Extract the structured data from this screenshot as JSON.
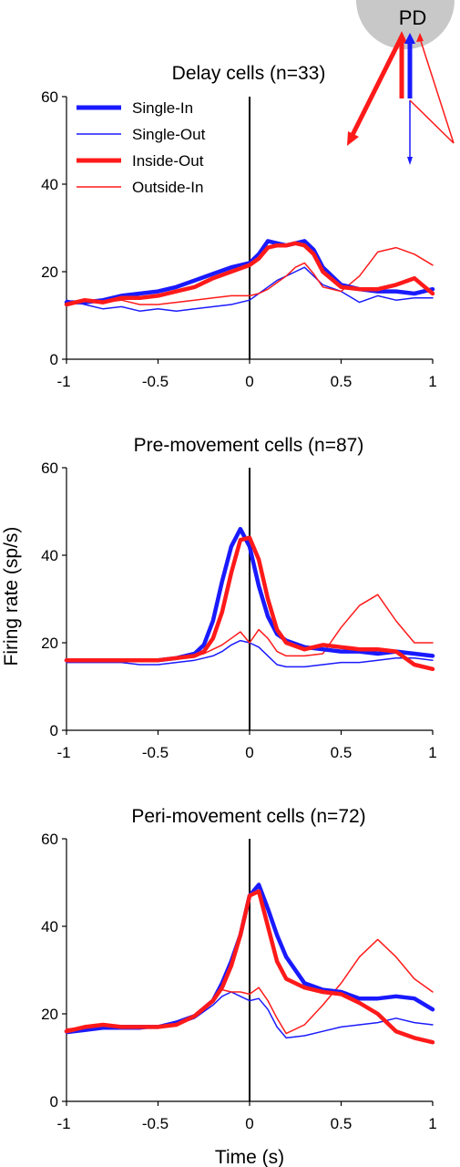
{
  "figure": {
    "ylabel": "Firing rate (sp/s)",
    "xlabel": "Time (s)",
    "inset_label": "PD",
    "colors": {
      "blue": "#1a1aff",
      "red": "#ff1a1a",
      "gray": "#c8c8c8"
    }
  },
  "legend": [
    {
      "name": "Single-In",
      "color": "#1a1aff",
      "weight": "thick"
    },
    {
      "name": "Single-Out",
      "color": "#1a1aff",
      "weight": "thin"
    },
    {
      "name": "Inside-Out",
      "color": "#ff1a1a",
      "weight": "thick"
    },
    {
      "name": "Outside-In",
      "color": "#ff1a1a",
      "weight": "thin"
    }
  ],
  "chart_data": [
    {
      "type": "line",
      "title": "Delay cells (n=33)",
      "xlim": [
        -1,
        1
      ],
      "ylim": [
        0,
        60
      ],
      "xticks": [
        "-1",
        "-0.5",
        "0",
        "0.5",
        "1"
      ],
      "yticks": [
        "0",
        "20",
        "40",
        "60"
      ],
      "x": [
        -1,
        -0.9,
        -0.8,
        -0.7,
        -0.6,
        -0.5,
        -0.4,
        -0.3,
        -0.2,
        -0.1,
        0,
        0.05,
        0.1,
        0.15,
        0.2,
        0.25,
        0.3,
        0.35,
        0.4,
        0.5,
        0.6,
        0.7,
        0.8,
        0.9,
        1
      ],
      "series": [
        {
          "name": "Single-In",
          "values": [
            13,
            13,
            13.5,
            14.5,
            15,
            15.5,
            16.5,
            18,
            19.5,
            21,
            22,
            24,
            27,
            26.5,
            26,
            26.5,
            27,
            25,
            21,
            17,
            16,
            15.5,
            15.5,
            15,
            16
          ]
        },
        {
          "name": "Single-Out",
          "values": [
            13.5,
            12.5,
            11.5,
            12,
            11,
            11.5,
            11,
            11.5,
            12,
            12.5,
            13.5,
            15,
            16.5,
            18,
            19,
            20,
            21,
            19,
            17,
            15.5,
            13,
            14.5,
            13.5,
            14,
            14
          ]
        },
        {
          "name": "Inside-Out",
          "values": [
            12.5,
            13.5,
            13,
            14,
            14,
            14.5,
            15.5,
            16.5,
            18.5,
            20,
            21.5,
            23,
            25.5,
            26,
            26,
            26.5,
            26,
            24,
            20,
            16.5,
            16,
            16,
            17,
            18.5,
            15
          ]
        },
        {
          "name": "Outside-In",
          "values": [
            12.5,
            13,
            13,
            13.5,
            12.5,
            12.5,
            13,
            13.5,
            14,
            14.5,
            14.5,
            15,
            16,
            17.5,
            19,
            21,
            22,
            19.5,
            16.5,
            15.5,
            19,
            24.5,
            25.5,
            24,
            21.5
          ]
        }
      ]
    },
    {
      "type": "line",
      "title": "Pre-movement cells (n=87)",
      "xlim": [
        -1,
        1
      ],
      "ylim": [
        0,
        60
      ],
      "xticks": [
        "-1",
        "-0.5",
        "0",
        "0.5",
        "1"
      ],
      "yticks": [
        "0",
        "20",
        "40",
        "60"
      ],
      "x": [
        -1,
        -0.9,
        -0.8,
        -0.7,
        -0.6,
        -0.5,
        -0.4,
        -0.3,
        -0.25,
        -0.2,
        -0.15,
        -0.1,
        -0.05,
        0,
        0.05,
        0.1,
        0.15,
        0.2,
        0.3,
        0.4,
        0.5,
        0.6,
        0.7,
        0.8,
        0.9,
        1
      ],
      "series": [
        {
          "name": "Single-In",
          "values": [
            16,
            16,
            16,
            16,
            16,
            16,
            16.5,
            17.5,
            19.5,
            25,
            34,
            42,
            46,
            42,
            33,
            26,
            22,
            20.5,
            19,
            18.5,
            18,
            18,
            17.5,
            18,
            17.5,
            17
          ]
        },
        {
          "name": "Single-Out",
          "values": [
            15.5,
            15.5,
            15.5,
            15.5,
            15,
            15,
            15.5,
            16,
            16.5,
            17,
            18,
            19.5,
            20.5,
            20,
            19,
            17,
            15,
            14.5,
            14.5,
            15,
            15.5,
            15.5,
            16,
            16.5,
            16.5,
            16
          ]
        },
        {
          "name": "Inside-Out",
          "values": [
            16,
            16,
            16,
            16,
            16,
            16,
            16.5,
            17,
            18,
            21,
            27,
            36,
            43.5,
            44,
            39,
            30,
            23,
            20,
            18.5,
            19.5,
            19,
            18.5,
            18.5,
            18,
            15,
            14
          ]
        },
        {
          "name": "Outside-In",
          "values": [
            16,
            16,
            16,
            16,
            16,
            16,
            16.5,
            17,
            17.5,
            18.5,
            19.5,
            21,
            22.5,
            20,
            23,
            21,
            18,
            17,
            17,
            17.5,
            23.5,
            28.5,
            31,
            25,
            20,
            20
          ]
        }
      ]
    },
    {
      "type": "line",
      "title": "Peri-movement cells (n=72)",
      "xlim": [
        -1,
        1
      ],
      "ylim": [
        0,
        60
      ],
      "xticks": [
        "-1",
        "-0.5",
        "0",
        "0.5",
        "1"
      ],
      "yticks": [
        "0",
        "20",
        "40",
        "60"
      ],
      "x": [
        -1,
        -0.9,
        -0.8,
        -0.7,
        -0.6,
        -0.5,
        -0.4,
        -0.3,
        -0.2,
        -0.15,
        -0.1,
        -0.05,
        0,
        0.05,
        0.1,
        0.15,
        0.2,
        0.3,
        0.4,
        0.5,
        0.6,
        0.7,
        0.8,
        0.9,
        1
      ],
      "series": [
        {
          "name": "Single-In",
          "values": [
            16,
            16.5,
            17,
            17,
            17,
            17,
            18,
            19.5,
            23,
            27,
            32,
            38,
            47,
            49.5,
            44,
            38,
            33,
            27,
            25.5,
            25,
            23.5,
            23.5,
            24,
            23.5,
            21
          ]
        },
        {
          "name": "Single-Out",
          "values": [
            15.5,
            16,
            16.5,
            16.5,
            16.5,
            17,
            17.5,
            19,
            22,
            24,
            25,
            24,
            23,
            23.5,
            21,
            17,
            14.5,
            15,
            16,
            17,
            17.5,
            18,
            19,
            18,
            17.5
          ]
        },
        {
          "name": "Inside-Out",
          "values": [
            16,
            17,
            17.5,
            17,
            17,
            17,
            17.5,
            19.5,
            23,
            26,
            31,
            38,
            47,
            48,
            40,
            32,
            28,
            26,
            25,
            24.5,
            22.5,
            20,
            16,
            14.5,
            13.5
          ]
        },
        {
          "name": "Outside-In",
          "values": [
            16.5,
            17,
            17.5,
            17,
            17,
            17,
            17.5,
            19.5,
            23,
            25.5,
            25,
            25,
            24.5,
            26,
            23,
            19,
            15.5,
            17.5,
            22,
            27,
            33,
            37,
            33,
            28,
            25
          ]
        }
      ]
    }
  ]
}
